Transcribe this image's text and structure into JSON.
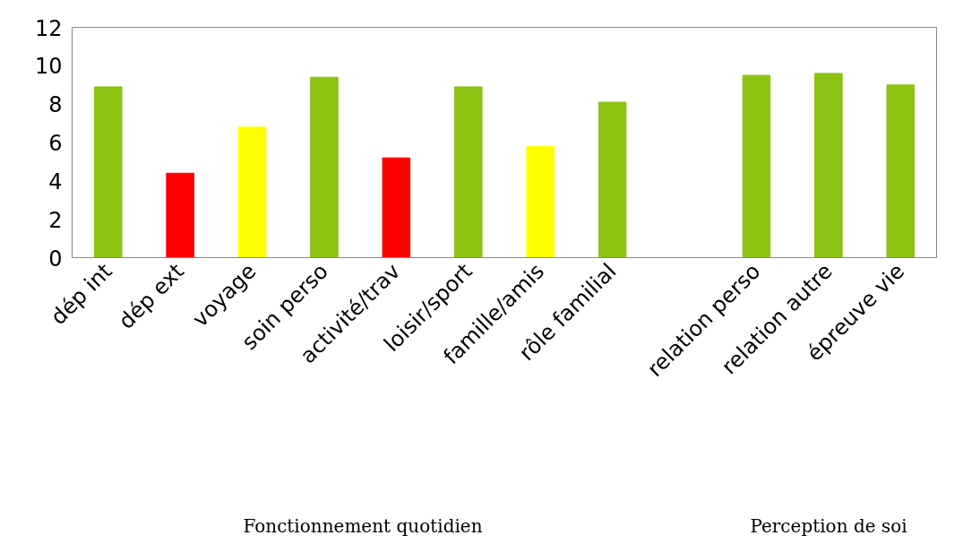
{
  "chart_data": {
    "type": "bar",
    "categories": [
      "dép int",
      "dép ext",
      "voyage",
      "soin perso",
      "activité/trav",
      "loisir/sport",
      "famille/amis",
      "rôle familial",
      null,
      "relation perso",
      "relation autre",
      "épreuve vie"
    ],
    "values": [
      8.9,
      4.4,
      6.8,
      9.4,
      5.2,
      8.9,
      5.8,
      8.1,
      null,
      9.5,
      9.6,
      9.0
    ],
    "colors": [
      "#8cc312",
      "#ff0000",
      "#ffff00",
      "#8cc312",
      "#ff0000",
      "#8cc312",
      "#ffff00",
      "#8cc312",
      null,
      "#8cc312",
      "#8cc312",
      "#8cc312"
    ],
    "ylim": [
      0,
      12
    ],
    "yticks": [
      0,
      2,
      4,
      6,
      8,
      10,
      12
    ],
    "grid": false,
    "annotations": [
      "Fonctionnement quotidien",
      "Perception de soi"
    ]
  }
}
